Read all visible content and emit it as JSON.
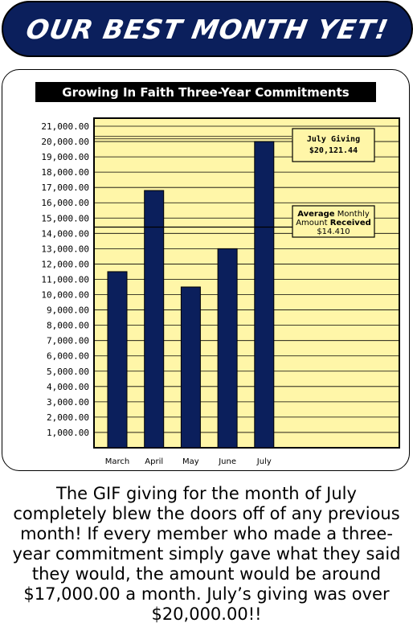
{
  "header": {
    "title": "OUR BEST MONTH YET!"
  },
  "chart_data": {
    "type": "bar",
    "title": "Growing In Faith Three-Year Commitments",
    "categories": [
      "March",
      "April",
      "May",
      "June",
      "July"
    ],
    "values": [
      11500,
      16800,
      10500,
      13000,
      20000
    ],
    "ylim": [
      0,
      21000
    ],
    "yticks": [
      "1,000.00",
      "2,000.00",
      "3,000.00",
      "4,000.00",
      "5,000.00",
      "6,000.00",
      "7,000.00",
      "8,000.00",
      "9,000.00",
      "10,000.00",
      "11,000.00",
      "12,000.00",
      "13,000.00",
      "14,000.00",
      "15,000.00",
      "16,000.00",
      "17,000.00",
      "18,000.00",
      "19,000.00",
      "20,000.00",
      "21,000.00"
    ],
    "grid": true,
    "colors": {
      "bar": "#0b1f5c",
      "plot_bg": "#fff6a8",
      "grid": "#000000"
    },
    "annotations": [
      {
        "name": "july-giving",
        "lines": [
          [
            "July Giving"
          ],
          [
            "$20,121.44"
          ]
        ],
        "value": 20121.44
      },
      {
        "name": "average",
        "lines": [
          [
            "Average",
            " Monthly"
          ],
          [
            "Amount ",
            "Received"
          ],
          [
            "$14.410"
          ]
        ],
        "value": 14410
      }
    ]
  },
  "caption": {
    "lines": [
      "The GIF giving for the month of July",
      "completely blew the doors off of any previous",
      "month! If every member who made a three-",
      "year commitment simply gave what they said",
      "they would, the amount would be around",
      "$17,000.00 a month. July’s giving was over",
      "$20,000.00!!"
    ]
  }
}
